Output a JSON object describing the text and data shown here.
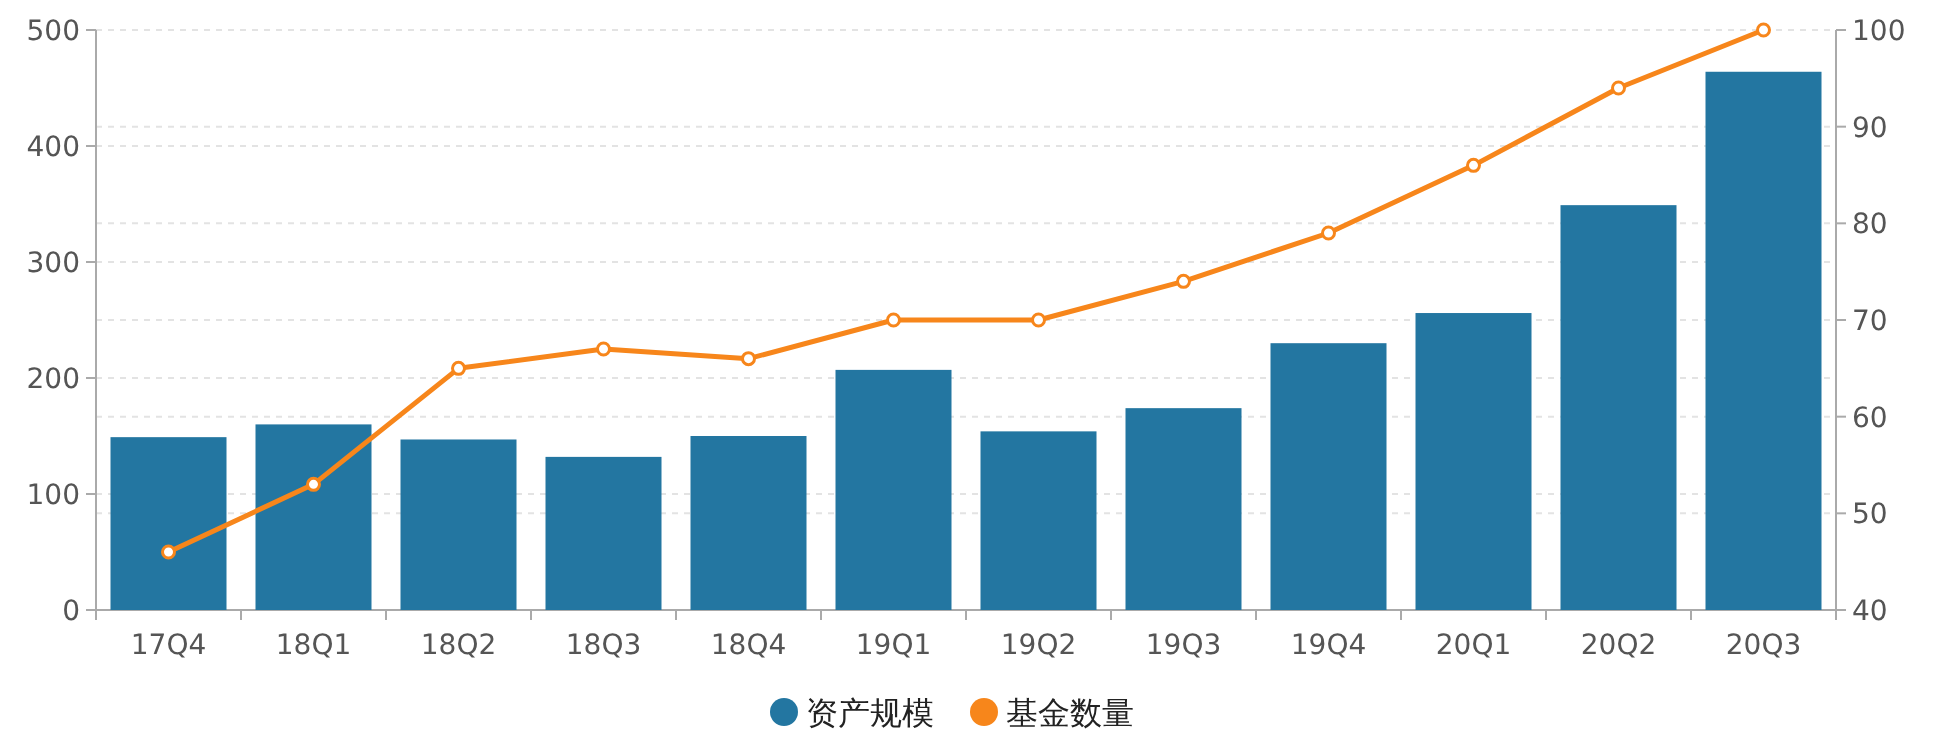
{
  "chart_data": {
    "type": "bar",
    "categories": [
      "17Q4",
      "18Q1",
      "18Q2",
      "18Q3",
      "18Q4",
      "19Q1",
      "19Q2",
      "19Q3",
      "19Q4",
      "20Q1",
      "20Q2",
      "20Q3"
    ],
    "series": [
      {
        "name": "资产规模",
        "color": "#2376a1",
        "values": [
          149,
          160,
          147,
          132,
          150,
          207,
          154,
          174,
          230,
          256,
          349,
          464
        ]
      },
      {
        "name": "基金数量",
        "type": "line",
        "axis": "y2",
        "color": "#f7861b",
        "values": [
          46,
          53,
          65,
          67,
          66,
          70,
          70,
          74,
          79,
          86,
          94,
          100
        ]
      }
    ],
    "ylim": [
      0,
      500
    ],
    "yticks": [
      0,
      100,
      200,
      300,
      400,
      500
    ],
    "y2lim": [
      40,
      100
    ],
    "y2ticks": [
      40,
      50,
      60,
      70,
      80,
      90,
      100
    ],
    "grid": true,
    "legend": "bottom",
    "marker": "circle",
    "line_style": "solid"
  }
}
